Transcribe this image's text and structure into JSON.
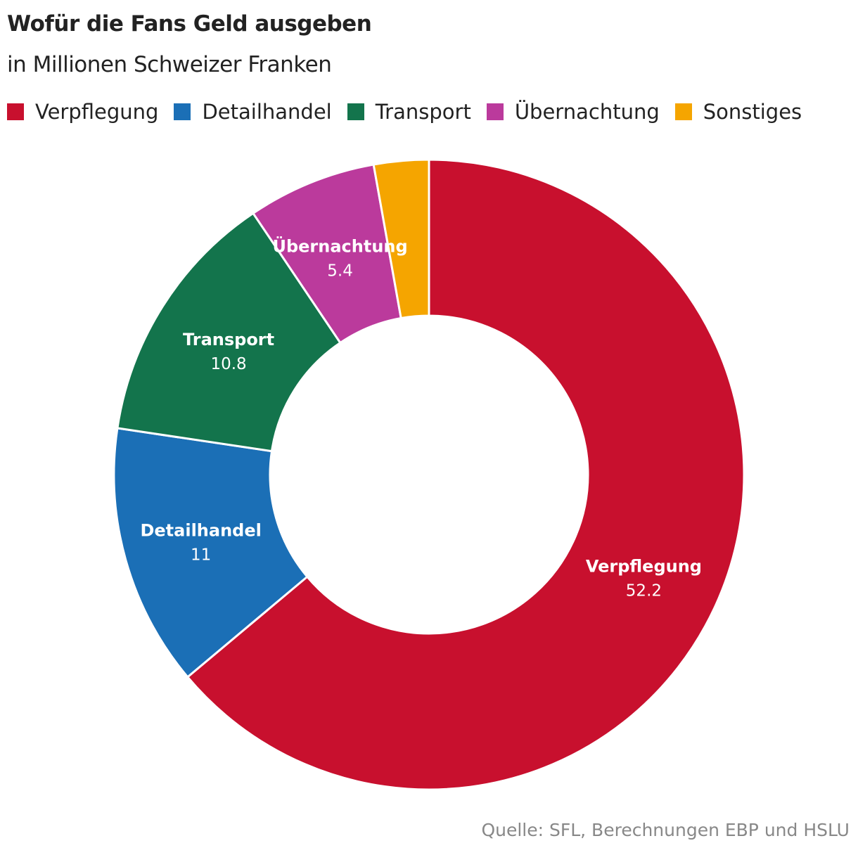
{
  "title": "Wofür die Fans Geld ausgeben",
  "subtitle": "in Millionen Schweizer Franken",
  "source": "Quelle: SFL, Berechnungen EBP und HSLU",
  "legend": [
    {
      "label": "Verpflegung",
      "color": "#c8102e"
    },
    {
      "label": "Detailhandel",
      "color": "#1b6fb6"
    },
    {
      "label": "Transport",
      "color": "#13744c"
    },
    {
      "label": "Übernachtung",
      "color": "#bb3a9c"
    },
    {
      "label": "Sonstiges",
      "color": "#f5a500"
    }
  ],
  "chart_data": {
    "type": "pie",
    "subtype": "donut",
    "title": "Wofür die Fans Geld ausgeben",
    "subtitle": "in Millionen Schweizer Franken",
    "categories": [
      "Verpflegung",
      "Detailhandel",
      "Transport",
      "Übernachtung",
      "Sonstiges"
    ],
    "values": [
      52.2,
      11,
      10.8,
      5.4,
      2.3
    ],
    "labels_shown": [
      "52.2",
      "11",
      "10.8",
      "5.4",
      ""
    ],
    "colors": [
      "#c8102e",
      "#1b6fb6",
      "#13744c",
      "#bb3a9c",
      "#f5a500"
    ],
    "legend_position": "top",
    "source": "Quelle: SFL, Berechnungen EBP und HSLU"
  }
}
